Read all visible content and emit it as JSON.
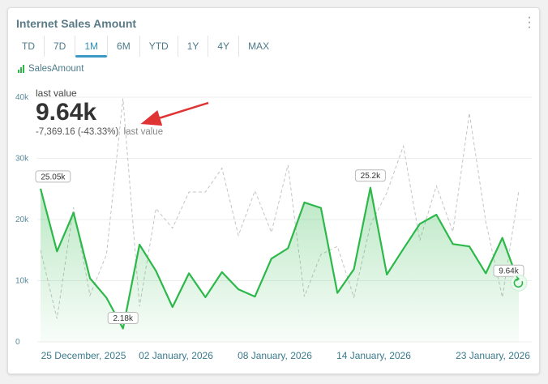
{
  "widget": {
    "title": "Internet Sales Amount",
    "menu_icon": "more-vertical-icon"
  },
  "tabs": [
    {
      "label": "TD",
      "active": false
    },
    {
      "label": "7D",
      "active": false
    },
    {
      "label": "1M",
      "active": true
    },
    {
      "label": "6M",
      "active": false
    },
    {
      "label": "YTD",
      "active": false
    },
    {
      "label": "1Y",
      "active": false
    },
    {
      "label": "4Y",
      "active": false
    },
    {
      "label": "MAX",
      "active": false
    }
  ],
  "legend": {
    "label": "SalesAmount",
    "icon": "bar-chart-icon",
    "color": "#2db84a"
  },
  "summary": {
    "label": "last value",
    "value": "9.64k",
    "delta": "-7,369.16",
    "delta_pct": "(-43.33%)",
    "delta_suffix": "last value"
  },
  "chart_data": {
    "type": "area",
    "ylim": [
      0,
      40000
    ],
    "y_ticks": [
      0,
      10000,
      20000,
      30000,
      40000
    ],
    "y_tick_labels": [
      "0",
      "10k",
      "20k",
      "30k",
      "40k"
    ],
    "x_tick_labels": [
      "25 December, 2025",
      "02 January, 2026",
      "08 January, 2026",
      "14 January, 2026",
      "23 January, 2026"
    ],
    "grid": true,
    "series": [
      {
        "name": "SalesAmount",
        "color": "#2db84a",
        "values": [
          25050,
          14800,
          21100,
          10400,
          7200,
          2180,
          15900,
          11600,
          5700,
          11200,
          7300,
          11400,
          8600,
          7400,
          13600,
          15300,
          22800,
          21900,
          8000,
          11900,
          25200,
          11000,
          15200,
          19300,
          20800,
          16000,
          15600,
          11200,
          17000,
          9640
        ]
      },
      {
        "color": "#c4c4c4",
        "values": [
          15000,
          3800,
          22000,
          7600,
          14300,
          39800,
          5800,
          21800,
          18600,
          24500,
          24500,
          28400,
          17400,
          24700,
          17900,
          28900,
          7400,
          14300,
          15600,
          7300,
          19100,
          24400,
          32000,
          16600,
          25500,
          18000,
          37400,
          19600,
          7300,
          24700
        ]
      }
    ],
    "data_labels": [
      {
        "index": 0,
        "text": "25.05k"
      },
      {
        "index": 5,
        "text": "2.18k"
      },
      {
        "index": 20,
        "text": "25.2k"
      },
      {
        "index": 29,
        "text": "9.64k"
      }
    ]
  }
}
